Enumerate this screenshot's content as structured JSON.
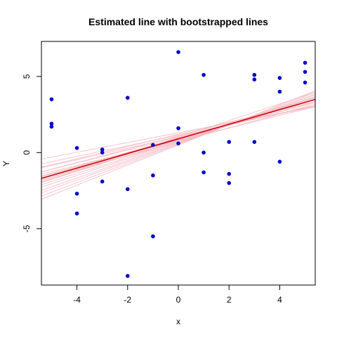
{
  "chart_data": {
    "type": "scatter",
    "title": "Estimated line with bootstrapped lines",
    "xlabel": "x",
    "ylabel": "Y",
    "xlim": [
      -5.4,
      5.4
    ],
    "ylim": [
      -8.7,
      7.3
    ],
    "x_ticks": [
      -4,
      -2,
      0,
      2,
      4
    ],
    "y_ticks": [
      -5,
      0,
      5
    ],
    "grid": false,
    "legend": "none",
    "colors": {
      "points": "#0000cc",
      "fit_line": "#cc0000",
      "bootstrap_lines": "#f4b7c2"
    },
    "points": [
      {
        "x": -5,
        "y": 3.5
      },
      {
        "x": -5,
        "y": 1.9
      },
      {
        "x": -5,
        "y": 1.7
      },
      {
        "x": -4,
        "y": 0.3
      },
      {
        "x": -4,
        "y": -2.7
      },
      {
        "x": -4,
        "y": -4.0
      },
      {
        "x": -3,
        "y": 0.2
      },
      {
        "x": -3,
        "y": 0.0
      },
      {
        "x": -3,
        "y": -1.9
      },
      {
        "x": -2,
        "y": 3.6
      },
      {
        "x": -2,
        "y": -2.4
      },
      {
        "x": -2,
        "y": -8.1
      },
      {
        "x": -1,
        "y": 0.5
      },
      {
        "x": -1,
        "y": -1.5
      },
      {
        "x": -1,
        "y": -5.5
      },
      {
        "x": 0,
        "y": 6.6
      },
      {
        "x": 0,
        "y": 1.6
      },
      {
        "x": 0,
        "y": 0.6
      },
      {
        "x": 1,
        "y": 5.1
      },
      {
        "x": 1,
        "y": 0.0
      },
      {
        "x": 1,
        "y": -1.3
      },
      {
        "x": 2,
        "y": 0.7
      },
      {
        "x": 2,
        "y": -1.4
      },
      {
        "x": 2,
        "y": -2.0
      },
      {
        "x": 3,
        "y": 5.1
      },
      {
        "x": 3,
        "y": 4.8
      },
      {
        "x": 3,
        "y": 0.7
      },
      {
        "x": 4,
        "y": 4.9
      },
      {
        "x": 4,
        "y": 4.0
      },
      {
        "x": 4,
        "y": -0.6
      },
      {
        "x": 5,
        "y": 5.9
      },
      {
        "x": 5,
        "y": 5.3
      },
      {
        "x": 5,
        "y": 4.6
      }
    ],
    "fit_line": {
      "intercept": 0.9,
      "slope": 0.48
    },
    "bootstrap_lines": [
      {
        "intercept": 1.3,
        "slope": 0.32
      },
      {
        "intercept": 1.05,
        "slope": 0.38
      },
      {
        "intercept": 0.9,
        "slope": 0.45
      },
      {
        "intercept": 0.8,
        "slope": 0.5
      },
      {
        "intercept": 0.7,
        "slope": 0.55
      },
      {
        "intercept": 0.6,
        "slope": 0.6
      },
      {
        "intercept": 0.5,
        "slope": 0.66
      },
      {
        "intercept": 1.0,
        "slope": 0.42
      },
      {
        "intercept": 1.15,
        "slope": 0.35
      },
      {
        "intercept": 0.85,
        "slope": 0.52
      },
      {
        "intercept": 0.65,
        "slope": 0.58
      },
      {
        "intercept": 1.2,
        "slope": 0.4
      },
      {
        "intercept": 0.95,
        "slope": 0.47
      },
      {
        "intercept": 0.75,
        "slope": 0.53
      },
      {
        "intercept": 0.55,
        "slope": 0.63
      },
      {
        "intercept": 1.1,
        "slope": 0.44
      },
      {
        "intercept": 0.9,
        "slope": 0.5
      },
      {
        "intercept": 0.7,
        "slope": 0.46
      },
      {
        "intercept": 1.0,
        "slope": 0.55
      },
      {
        "intercept": 0.8,
        "slope": 0.41
      }
    ]
  }
}
